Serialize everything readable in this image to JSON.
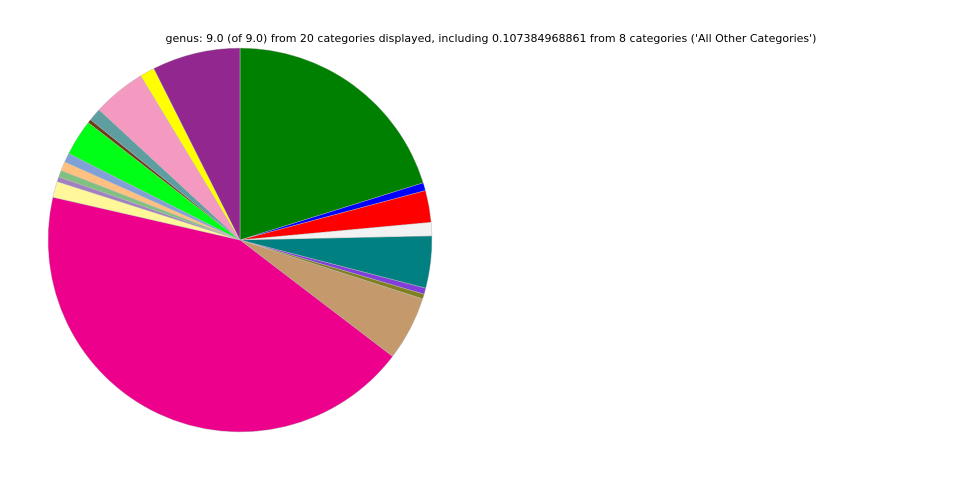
{
  "chart_data": {
    "type": "pie",
    "title": "genus: 9.0 (of 9.0) from 20 categories displayed, including 0.107384968861 from 8 categories ('All Other Categories')",
    "start_angle_deg": 90,
    "direction": "clockwise",
    "slices": [
      {
        "value": 0.196,
        "color": "#008000"
      },
      {
        "value": 0.0065,
        "color": "#0000ff"
      },
      {
        "value": 0.026,
        "color": "#ff0000"
      },
      {
        "value": 0.011,
        "color": "#f2f2f2"
      },
      {
        "value": 0.0425,
        "color": "#008080"
      },
      {
        "value": 0.005,
        "color": "#7f3fd8"
      },
      {
        "value": 0.004,
        "color": "#808020"
      },
      {
        "value": 0.0525,
        "color": "#c49a6c"
      },
      {
        "value": 0.4195,
        "color": "#ec008c"
      },
      {
        "value": 0.013,
        "color": "#fff799"
      },
      {
        "value": 0.004,
        "color": "#a080c0"
      },
      {
        "value": 0.0055,
        "color": "#80c080"
      },
      {
        "value": 0.0075,
        "color": "#ffc080"
      },
      {
        "value": 0.0075,
        "color": "#80a0d8"
      },
      {
        "value": 0.0295,
        "color": "#00ff16"
      },
      {
        "value": 0.003,
        "color": "#6b3e1a"
      },
      {
        "value": 0.0105,
        "color": "#5f9ea0"
      },
      {
        "value": 0.0435,
        "color": "#f49ac1"
      },
      {
        "value": 0.012,
        "color": "#ffff00"
      },
      {
        "value": 0.072,
        "color": "#92278f"
      }
    ]
  }
}
